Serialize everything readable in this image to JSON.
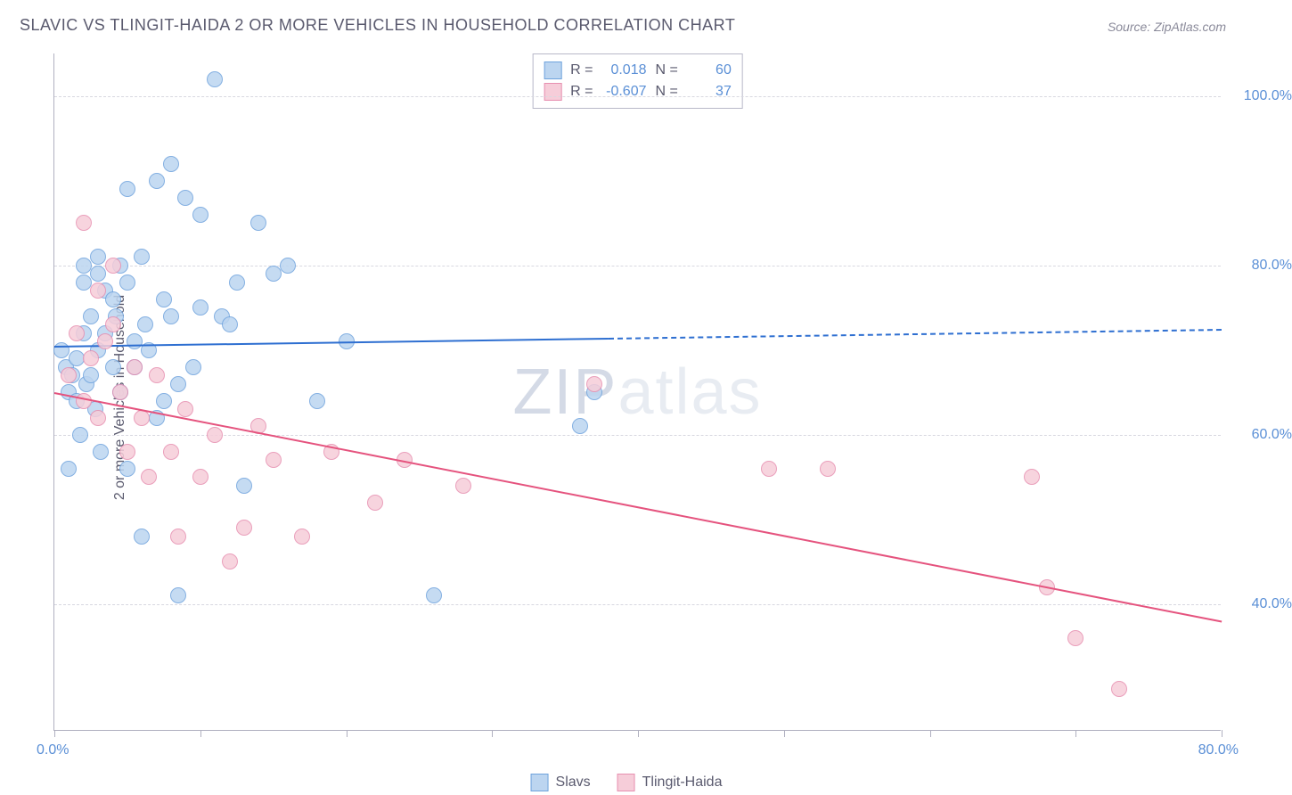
{
  "title": "SLAVIC VS TLINGIT-HAIDA 2 OR MORE VEHICLES IN HOUSEHOLD CORRELATION CHART",
  "source": "Source: ZipAtlas.com",
  "ylabel": "2 or more Vehicles in Household",
  "watermark_a": "ZIP",
  "watermark_b": "atlas",
  "chart": {
    "type": "scatter",
    "xlim": [
      0,
      80
    ],
    "ylim": [
      25,
      105
    ],
    "xtick_positions": [
      0,
      10,
      20,
      30,
      40,
      50,
      60,
      70,
      80
    ],
    "xtick_labels_shown": {
      "0": "0.0%",
      "80": "80.0%"
    },
    "ytick_positions": [
      40,
      60,
      80,
      100
    ],
    "ytick_labels": [
      "40.0%",
      "60.0%",
      "80.0%",
      "100.0%"
    ],
    "grid_color": "#d8d8e0",
    "axis_color": "#b0b0c0",
    "tick_label_color": "#5a8fd6",
    "background_color": "#ffffff",
    "point_radius": 9,
    "point_border_width": 1.5,
    "trend_line_width": 2
  },
  "series": [
    {
      "name": "Slavs",
      "fill_color": "#bcd5f0",
      "border_color": "#6fa3dd",
      "line_color": "#2e6fd1",
      "R": "0.018",
      "N": "60",
      "trend": {
        "x1": 0,
        "y1": 70.5,
        "x2": 80,
        "y2": 72.5,
        "solid_until_x": 38
      },
      "points": [
        [
          0.5,
          70
        ],
        [
          0.8,
          68
        ],
        [
          1,
          56
        ],
        [
          1,
          65
        ],
        [
          1.2,
          67
        ],
        [
          1.5,
          64
        ],
        [
          1.5,
          69
        ],
        [
          1.8,
          60
        ],
        [
          2,
          78
        ],
        [
          2,
          72
        ],
        [
          2,
          80
        ],
        [
          2.2,
          66
        ],
        [
          2.5,
          67
        ],
        [
          2.5,
          74
        ],
        [
          2.8,
          63
        ],
        [
          3,
          79
        ],
        [
          3,
          81
        ],
        [
          3,
          70
        ],
        [
          3.2,
          58
        ],
        [
          3.5,
          77
        ],
        [
          3.5,
          72
        ],
        [
          4,
          68
        ],
        [
          4,
          76
        ],
        [
          4.2,
          74
        ],
        [
          4.5,
          80
        ],
        [
          4.5,
          65
        ],
        [
          5,
          89
        ],
        [
          5,
          78
        ],
        [
          5,
          56
        ],
        [
          5.5,
          71
        ],
        [
          5.5,
          68
        ],
        [
          6,
          81
        ],
        [
          6,
          48
        ],
        [
          6.2,
          73
        ],
        [
          6.5,
          70
        ],
        [
          7,
          62
        ],
        [
          7,
          90
        ],
        [
          7.5,
          64
        ],
        [
          7.5,
          76
        ],
        [
          8,
          92
        ],
        [
          8,
          74
        ],
        [
          8.5,
          66
        ],
        [
          8.5,
          41
        ],
        [
          9,
          88
        ],
        [
          9.5,
          68
        ],
        [
          10,
          75
        ],
        [
          10,
          86
        ],
        [
          11,
          102
        ],
        [
          11.5,
          74
        ],
        [
          12,
          73
        ],
        [
          12.5,
          78
        ],
        [
          13,
          54
        ],
        [
          14,
          85
        ],
        [
          15,
          79
        ],
        [
          16,
          80
        ],
        [
          18,
          64
        ],
        [
          20,
          71
        ],
        [
          26,
          41
        ],
        [
          36,
          61
        ],
        [
          37,
          65
        ]
      ]
    },
    {
      "name": "Tlingit-Haida",
      "fill_color": "#f6cdd9",
      "border_color": "#e78fb0",
      "line_color": "#e5537e",
      "R": "-0.607",
      "N": "37",
      "trend": {
        "x1": 0,
        "y1": 65,
        "x2": 80,
        "y2": 38,
        "solid_until_x": 80
      },
      "points": [
        [
          1,
          67
        ],
        [
          1.5,
          72
        ],
        [
          2,
          85
        ],
        [
          2,
          64
        ],
        [
          2.5,
          69
        ],
        [
          3,
          77
        ],
        [
          3,
          62
        ],
        [
          3.5,
          71
        ],
        [
          4,
          73
        ],
        [
          4,
          80
        ],
        [
          4.5,
          65
        ],
        [
          5,
          58
        ],
        [
          5.5,
          68
        ],
        [
          6,
          62
        ],
        [
          6.5,
          55
        ],
        [
          7,
          67
        ],
        [
          8,
          58
        ],
        [
          8.5,
          48
        ],
        [
          9,
          63
        ],
        [
          10,
          55
        ],
        [
          11,
          60
        ],
        [
          12,
          45
        ],
        [
          13,
          49
        ],
        [
          14,
          61
        ],
        [
          15,
          57
        ],
        [
          17,
          48
        ],
        [
          19,
          58
        ],
        [
          22,
          52
        ],
        [
          24,
          57
        ],
        [
          28,
          54
        ],
        [
          37,
          66
        ],
        [
          49,
          56
        ],
        [
          53,
          56
        ],
        [
          67,
          55
        ],
        [
          68,
          42
        ],
        [
          70,
          36
        ],
        [
          73,
          30
        ]
      ]
    }
  ],
  "legend": {
    "r_label": "R =",
    "n_label": "N ="
  }
}
